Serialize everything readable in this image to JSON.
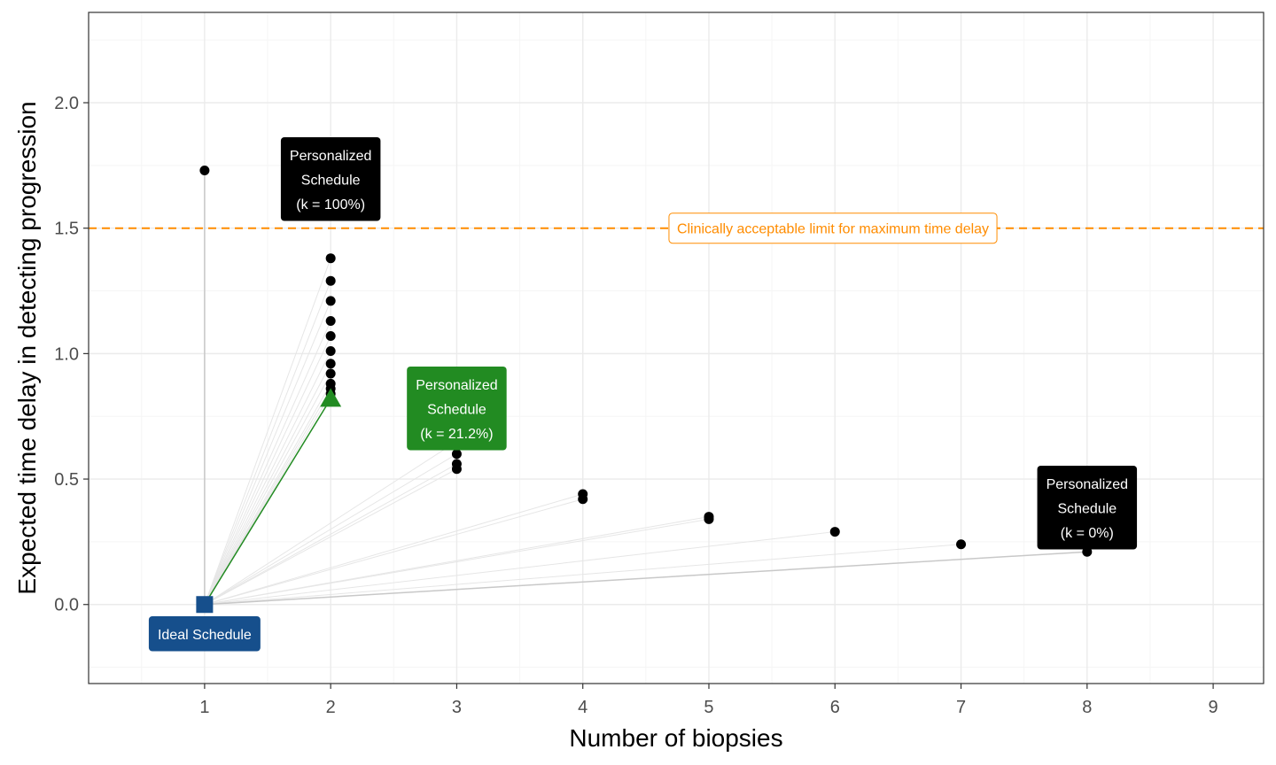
{
  "colors": {
    "point": "#000000",
    "ideal": "#164f8c",
    "highlight": "#228b22",
    "reference": "#ff8c00",
    "connector": "#e6e6e6",
    "connector_highlight": "#c8c8c8",
    "grid_major": "#ebebeb",
    "grid_minor": "#f5f5f5"
  },
  "chart_data": {
    "type": "scatter",
    "xlabel": "Number of biopsies",
    "ylabel": "Expected time delay in detecting progression",
    "xlim": [
      0.08,
      9.4
    ],
    "ylim": [
      -0.315,
      2.36
    ],
    "x_ticks": [
      1,
      2,
      3,
      4,
      5,
      6,
      7,
      8,
      9
    ],
    "y_ticks": [
      0.0,
      0.5,
      1.0,
      1.5,
      2.0
    ],
    "y_tick_labels": [
      "0.0",
      "0.5",
      "1.0",
      "1.5",
      "2.0"
    ],
    "grid": true,
    "ideal_point": {
      "x": 1,
      "y": 0,
      "label": "Ideal Schedule"
    },
    "points": [
      {
        "x": 1,
        "y": 1.73
      },
      {
        "x": 2,
        "y": 1.38
      },
      {
        "x": 2,
        "y": 1.29
      },
      {
        "x": 2,
        "y": 1.21
      },
      {
        "x": 2,
        "y": 1.13
      },
      {
        "x": 2,
        "y": 1.07
      },
      {
        "x": 2,
        "y": 1.01
      },
      {
        "x": 2,
        "y": 0.96
      },
      {
        "x": 2,
        "y": 0.92
      },
      {
        "x": 2,
        "y": 0.88
      },
      {
        "x": 2,
        "y": 0.86
      },
      {
        "x": 2,
        "y": 0.84
      },
      {
        "x": 3,
        "y": 0.65
      },
      {
        "x": 3,
        "y": 0.6
      },
      {
        "x": 3,
        "y": 0.56
      },
      {
        "x": 3,
        "y": 0.54
      },
      {
        "x": 4,
        "y": 0.44
      },
      {
        "x": 4,
        "y": 0.42
      },
      {
        "x": 5,
        "y": 0.35
      },
      {
        "x": 5,
        "y": 0.34
      },
      {
        "x": 6,
        "y": 0.29
      },
      {
        "x": 7,
        "y": 0.24
      },
      {
        "x": 8,
        "y": 0.21
      }
    ],
    "highlight_point": {
      "x": 2,
      "y": 0.82
    },
    "reference_line": {
      "y": 1.5,
      "label": "Clinically acceptable limit for maximum time delay"
    },
    "annotations": [
      {
        "lines": [
          "Personalized",
          "Schedule",
          "(k = 100%)"
        ],
        "x": 1,
        "y": 1.73,
        "style": "black"
      },
      {
        "lines": [
          "Personalized",
          "Schedule",
          "(k = 21.2%)"
        ],
        "x": 2,
        "y": 0.82,
        "style": "green"
      },
      {
        "lines": [
          "Personalized",
          "Schedule",
          "(k = 0%)"
        ],
        "x": 8,
        "y": 0.21,
        "style": "black"
      }
    ]
  }
}
